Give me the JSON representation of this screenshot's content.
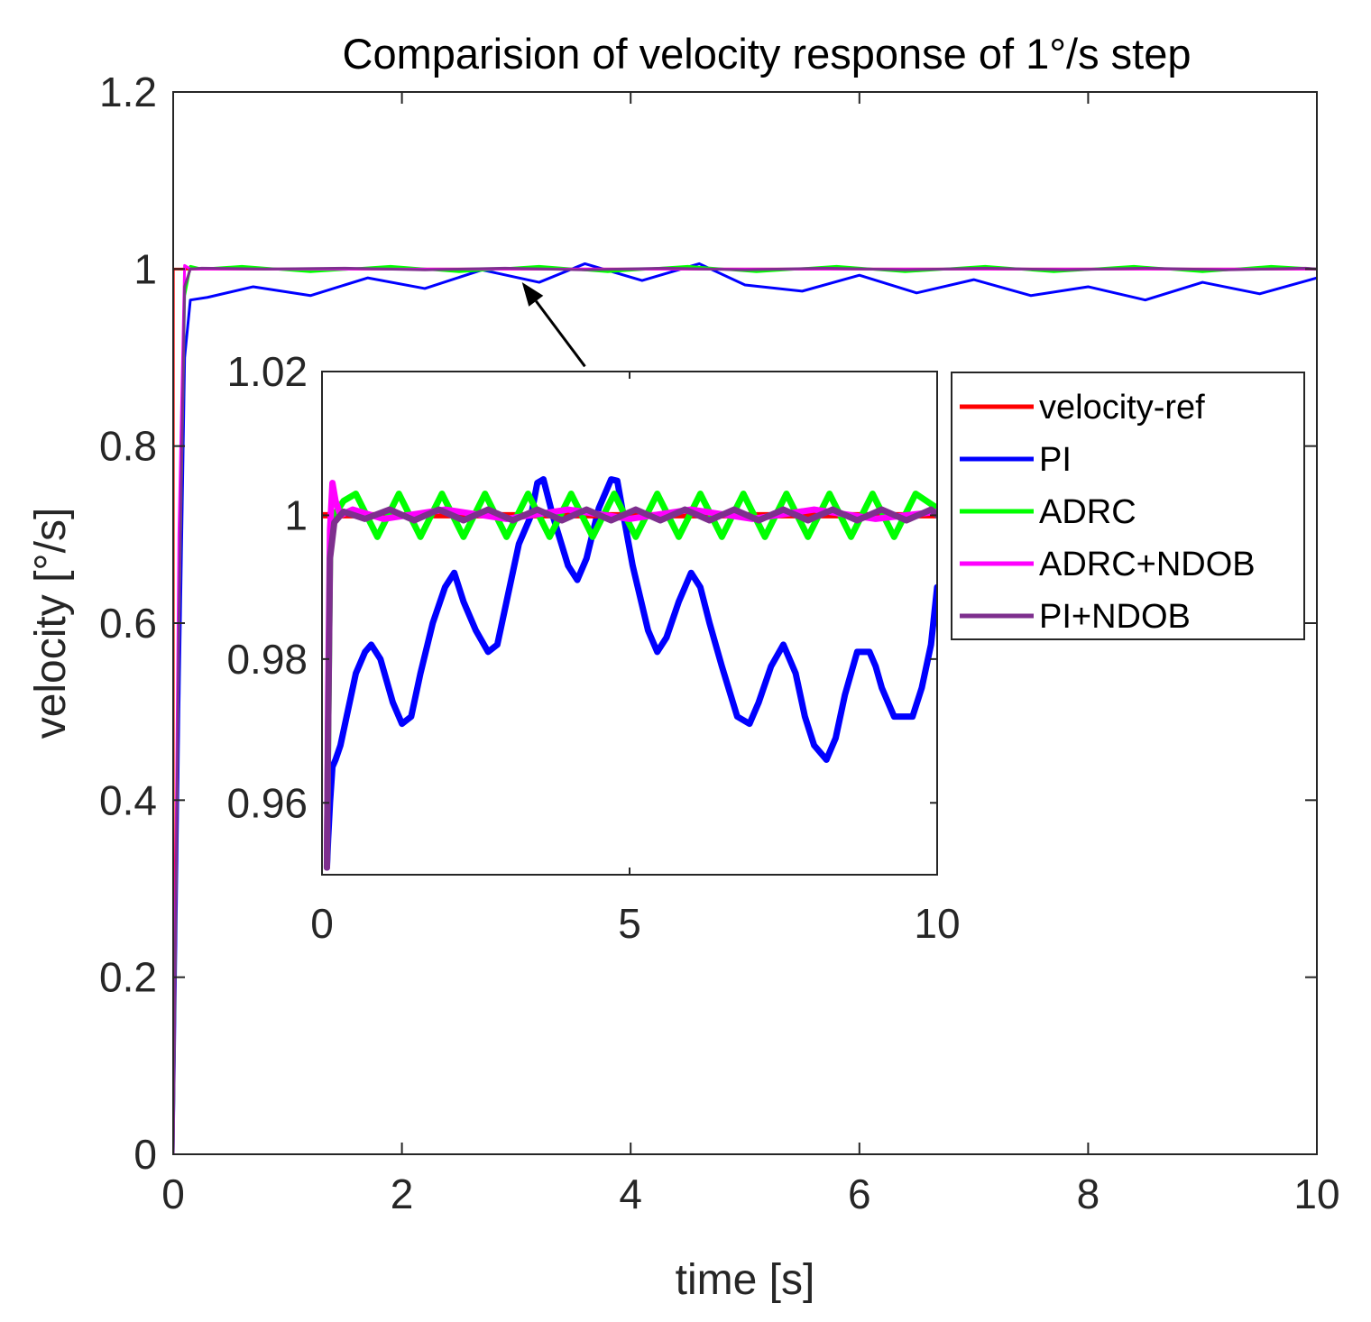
{
  "chart_data": [
    {
      "id": "main",
      "type": "line",
      "title": "Comparision of velocity  response of 1°/s step",
      "xlabel": "time [s]",
      "ylabel": "velocity [°/s]",
      "xlim": [
        0,
        10
      ],
      "ylim": [
        0,
        1.2
      ],
      "xticks": [
        0,
        2,
        4,
        6,
        8,
        10
      ],
      "xtick_labels": [
        "0",
        "2",
        "4",
        "6",
        "8",
        "10"
      ],
      "yticks": [
        0,
        0.2,
        0.4,
        0.6,
        0.8,
        1,
        1.2
      ],
      "ytick_labels": [
        "0",
        "0.2",
        "0.4",
        "0.6",
        "0.8",
        "1",
        "1.2"
      ],
      "grid": false,
      "series": [
        {
          "name": "velocity-ref",
          "color": "#ff0000",
          "x": [
            0,
            0.001,
            10
          ],
          "y": [
            0,
            1.0,
            1.0
          ]
        },
        {
          "name": "PI",
          "color": "#0000ff",
          "x": [
            0,
            0.05,
            0.1,
            0.15,
            0.3,
            0.7,
            1.2,
            1.7,
            2.2,
            2.7,
            3.2,
            3.6,
            4.1,
            4.6,
            5.0,
            5.5,
            6.0,
            6.5,
            7.0,
            7.5,
            8.0,
            8.5,
            9.0,
            9.5,
            10.0
          ],
          "y": [
            0,
            0.5,
            0.9,
            0.965,
            0.968,
            0.98,
            0.97,
            0.99,
            0.978,
            0.999,
            0.985,
            1.006,
            0.987,
            1.006,
            0.982,
            0.975,
            0.993,
            0.973,
            0.988,
            0.97,
            0.98,
            0.965,
            0.985,
            0.972,
            0.99
          ]
        },
        {
          "name": "ADRC",
          "color": "#00ff00",
          "x": [
            0,
            0.05,
            0.1,
            0.15,
            0.25,
            0.6,
            1.2,
            1.9,
            2.5,
            3.2,
            3.8,
            4.5,
            5.1,
            5.8,
            6.4,
            7.1,
            7.7,
            8.4,
            9.0,
            9.6,
            10.0
          ],
          "y": [
            0,
            0.6,
            0.97,
            1.003,
            1.0,
            1.003,
            0.997,
            1.003,
            0.997,
            1.003,
            0.997,
            1.003,
            0.997,
            1.003,
            0.997,
            1.003,
            0.997,
            1.003,
            0.997,
            1.003,
            1.0
          ]
        },
        {
          "name": "ADRC+NDOB",
          "color": "#ff00ff",
          "x": [
            0,
            0.05,
            0.1,
            0.15,
            0.3,
            10.0
          ],
          "y": [
            0,
            0.7,
            1.004,
            1.0,
            1.0,
            1.0
          ]
        },
        {
          "name": "PI+NDOB",
          "color": "#7e2f8e",
          "x": [
            0,
            0.05,
            0.1,
            0.15,
            0.25,
            0.8,
            1.5,
            2.2,
            2.9,
            3.6,
            4.3,
            5.0,
            5.7,
            6.4,
            7.1,
            7.8,
            8.5,
            9.2,
            9.9,
            10.0
          ],
          "y": [
            0,
            0.6,
            0.98,
            1.0,
            1.001,
            1.0,
            1.001,
            0.999,
            1.001,
            0.999,
            1.001,
            0.999,
            1.001,
            0.999,
            1.001,
            0.999,
            1.001,
            0.999,
            1.001,
            1.0
          ]
        }
      ],
      "annotation": {
        "type": "arrow",
        "from": [
          3.6,
          0.89
        ],
        "to": [
          3.05,
          0.985
        ]
      },
      "legend": {
        "location": "inset-right",
        "entries": [
          "velocity-ref",
          "PI",
          "ADRC",
          "ADRC+NDOB",
          "PI+NDOB"
        ]
      }
    },
    {
      "id": "inset",
      "type": "line",
      "title": "",
      "xlabel": "",
      "ylabel": "",
      "xlim": [
        0,
        10
      ],
      "ylim": [
        0.95,
        1.02
      ],
      "xticks": [
        0,
        5,
        10
      ],
      "xtick_labels": [
        "0",
        "5",
        "10"
      ],
      "yticks": [
        0.96,
        0.98,
        1,
        1.02
      ],
      "ytick_labels": [
        "0.96",
        "0.98",
        "1",
        "1.02"
      ],
      "grid": false,
      "series": [
        {
          "name": "velocity-ref",
          "color": "#ff0000",
          "x": [
            0,
            10
          ],
          "y": [
            1.0,
            1.0
          ]
        },
        {
          "name": "PI",
          "color": "#0000ff",
          "x": [
            0.08,
            0.1,
            0.13,
            0.17,
            0.22,
            0.3,
            0.4,
            0.55,
            0.7,
            0.8,
            0.95,
            1.15,
            1.3,
            1.45,
            1.6,
            1.8,
            2.0,
            2.15,
            2.3,
            2.5,
            2.7,
            2.85,
            3.0,
            3.2,
            3.4,
            3.5,
            3.6,
            3.75,
            4.0,
            4.15,
            4.3,
            4.5,
            4.7,
            4.8,
            4.9,
            5.05,
            5.3,
            5.45,
            5.6,
            5.8,
            6.0,
            6.15,
            6.3,
            6.5,
            6.75,
            6.95,
            7.1,
            7.3,
            7.5,
            7.7,
            7.85,
            8.0,
            8.2,
            8.35,
            8.5,
            8.7,
            8.9,
            9.0,
            9.1,
            9.3,
            9.6,
            9.75,
            9.9,
            10.0
          ],
          "y": [
            0.951,
            0.955,
            0.96,
            0.965,
            0.966,
            0.968,
            0.972,
            0.978,
            0.981,
            0.982,
            0.98,
            0.974,
            0.971,
            0.972,
            0.978,
            0.985,
            0.99,
            0.992,
            0.988,
            0.984,
            0.981,
            0.982,
            0.988,
            0.996,
            1.0,
            1.0045,
            1.005,
            1.0,
            0.993,
            0.991,
            0.994,
            1.001,
            1.005,
            1.0048,
            1.0,
            0.993,
            0.984,
            0.981,
            0.983,
            0.988,
            0.992,
            0.99,
            0.985,
            0.979,
            0.972,
            0.971,
            0.974,
            0.979,
            0.982,
            0.978,
            0.972,
            0.968,
            0.966,
            0.969,
            0.975,
            0.981,
            0.981,
            0.979,
            0.976,
            0.972,
            0.972,
            0.976,
            0.982,
            0.99
          ]
        },
        {
          "name": "ADRC",
          "color": "#00ff00",
          "x": [
            0.08,
            0.1,
            0.13,
            0.2,
            0.35,
            0.55,
            0.9,
            1.25,
            1.6,
            1.95,
            2.3,
            2.65,
            3.0,
            3.35,
            3.7,
            4.05,
            4.4,
            4.75,
            5.1,
            5.45,
            5.8,
            6.15,
            6.5,
            6.85,
            7.2,
            7.55,
            7.9,
            8.25,
            8.6,
            8.95,
            9.3,
            9.65,
            10.0
          ],
          "y": [
            0.951,
            0.97,
            0.995,
            1.0,
            1.002,
            1.003,
            0.997,
            1.003,
            0.997,
            1.003,
            0.997,
            1.003,
            0.997,
            1.003,
            0.997,
            1.003,
            0.997,
            1.003,
            0.997,
            1.003,
            0.997,
            1.003,
            0.997,
            1.003,
            0.997,
            1.003,
            0.997,
            1.003,
            0.997,
            1.003,
            0.997,
            1.003,
            1.001
          ]
        },
        {
          "name": "ADRC+NDOB",
          "color": "#ff00ff",
          "x": [
            0.08,
            0.1,
            0.13,
            0.17,
            0.22,
            0.3,
            0.5,
            1.0,
            2.0,
            3.0,
            4.0,
            5.0,
            6.0,
            7.0,
            8.0,
            9.0,
            10.0
          ],
          "y": [
            0.951,
            0.975,
            0.998,
            1.0045,
            1.002,
            1.0,
            1.0008,
            0.9995,
            1.0008,
            0.9995,
            1.0008,
            0.9995,
            1.0008,
            0.9995,
            1.0008,
            0.9995,
            1.0005
          ]
        },
        {
          "name": "PI+NDOB",
          "color": "#7e2f8e",
          "x": [
            0.08,
            0.1,
            0.13,
            0.2,
            0.35,
            0.7,
            1.1,
            1.5,
            1.9,
            2.3,
            2.7,
            3.1,
            3.5,
            3.9,
            4.3,
            4.7,
            5.1,
            5.5,
            5.9,
            6.3,
            6.7,
            7.1,
            7.5,
            7.9,
            8.3,
            8.7,
            9.1,
            9.5,
            9.9,
            10.0
          ],
          "y": [
            0.951,
            0.97,
            0.994,
            0.999,
            1.0005,
            0.9995,
            1.0008,
            0.9993,
            1.0008,
            0.9993,
            1.0008,
            0.9993,
            1.0008,
            0.9993,
            1.0008,
            0.9993,
            1.0008,
            0.9993,
            1.0008,
            0.9993,
            1.0008,
            0.9993,
            1.0008,
            0.9993,
            1.0008,
            0.9993,
            1.0008,
            0.9993,
            1.0008,
            1.0
          ]
        }
      ]
    }
  ]
}
